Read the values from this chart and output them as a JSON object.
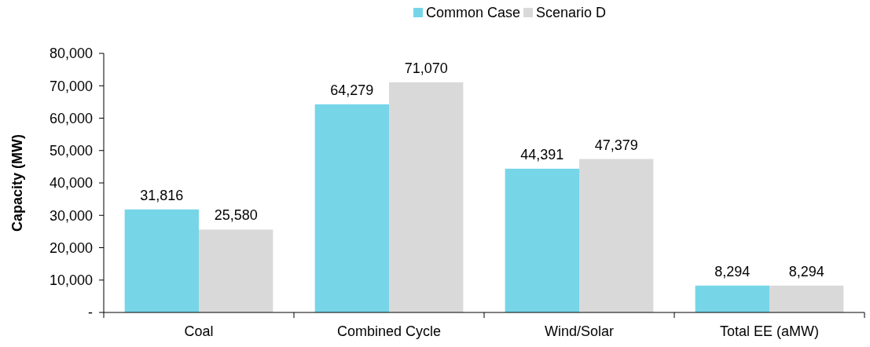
{
  "chart_data": {
    "type": "bar",
    "ylabel": "Capacity (MW)",
    "categories": [
      "Coal",
      "Combined Cycle",
      "Wind/Solar",
      "Total EE (aMW)"
    ],
    "series": [
      {
        "name": "Common Case",
        "color": "#77d5e8",
        "values": [
          31816,
          64279,
          44391,
          8294
        ],
        "value_labels": [
          "31,816",
          "64,279",
          "44,391",
          "8,294"
        ]
      },
      {
        "name": "Scenario D",
        "color": "#d9d9d9",
        "values": [
          25580,
          71070,
          47379,
          8294
        ],
        "value_labels": [
          "25,580",
          "71,070",
          "47,379",
          "8,294"
        ]
      }
    ],
    "ylim": [
      0,
      80000
    ],
    "yticks": [
      {
        "value": 0,
        "label": "-"
      },
      {
        "value": 10000,
        "label": "10,000"
      },
      {
        "value": 20000,
        "label": "20,000"
      },
      {
        "value": 30000,
        "label": "30,000"
      },
      {
        "value": 40000,
        "label": "40,000"
      },
      {
        "value": 50000,
        "label": "50,000"
      },
      {
        "value": 60000,
        "label": "60,000"
      },
      {
        "value": 70000,
        "label": "70,000"
      },
      {
        "value": 80000,
        "label": "80,000"
      }
    ],
    "legend": "top",
    "grid": false
  }
}
